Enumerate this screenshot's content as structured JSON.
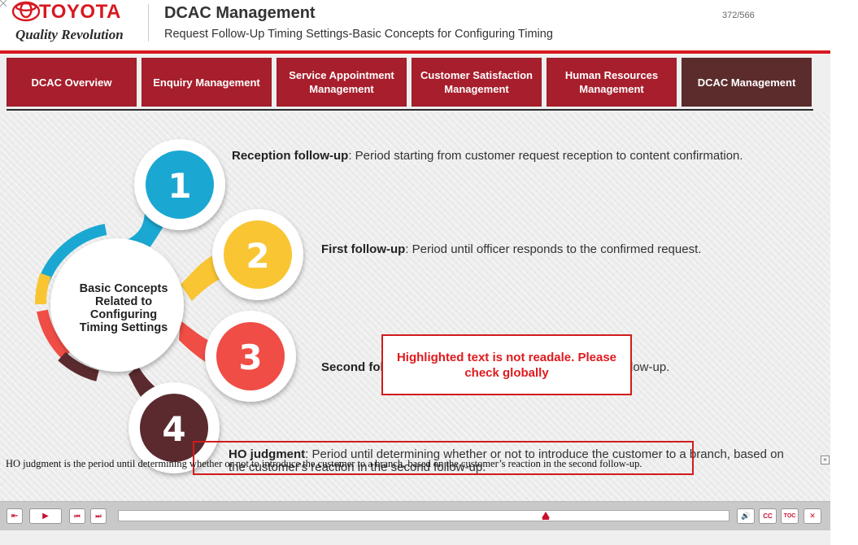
{
  "header": {
    "brand": "TOYOTA",
    "tagline": "Quality Revolution",
    "course_title": "DCAC Management",
    "subtitle": "Request Follow-Up Timing Settings-Basic Concepts for Configuring Timing",
    "page_counter": "372/566"
  },
  "nav": {
    "tabs": [
      {
        "label": "DCAC Overview",
        "active": false
      },
      {
        "label": "Enquiry Management",
        "active": false
      },
      {
        "label": "Service Appointment Management",
        "active": false
      },
      {
        "label": "Customer Satisfaction Management",
        "active": false
      },
      {
        "label": "Human Resources Management",
        "active": false
      },
      {
        "label": "DCAC Management",
        "active": true
      }
    ]
  },
  "diagram": {
    "center_label": [
      "Basic Concepts",
      "Related to",
      "Configuring",
      "Timing Settings"
    ],
    "steps": [
      {
        "number": "1",
        "color": "#1aa8d2"
      },
      {
        "number": "2",
        "color": "#f9c533"
      },
      {
        "number": "3",
        "color": "#ef4d45"
      },
      {
        "number": "4",
        "color": "#5a2a2e"
      }
    ]
  },
  "items": [
    {
      "term": "Reception follow-up",
      "text": ": Period starting from customer request reception to content confirmation."
    },
    {
      "term": "First follow-up",
      "text": ": Period until officer responds to the confirmed request."
    },
    {
      "term": "Second fol",
      "text": "low-up."
    },
    {
      "term": "HO judgment",
      "text": ": Period until determining whether or not to introduce the customer to a branch, based on the customer's reaction in the second follow-up."
    }
  ],
  "alert": {
    "message": "Highlighted text is not readale. Please check globally"
  },
  "caption": {
    "text": "HO judgment is the period until determining whether or not to introduce the customer to a branch, based on the customer’s reaction in the second follow-up.",
    "close_symbol": "×"
  },
  "player": {
    "exit_symbol": "⇤",
    "play_symbol": "▶",
    "prev_symbol": "⏮",
    "next_symbol": "⏭",
    "audio_symbol": "🔊",
    "cc_label": "CC",
    "toc_label": "TOC",
    "close_symbol": "✕",
    "progress": 0.7
  },
  "colors": {
    "brand_red": "#d71920",
    "nav_tab": "#a71e2c",
    "nav_tab_active": "#5c2c2c",
    "alert_red": "#d11c1c"
  }
}
